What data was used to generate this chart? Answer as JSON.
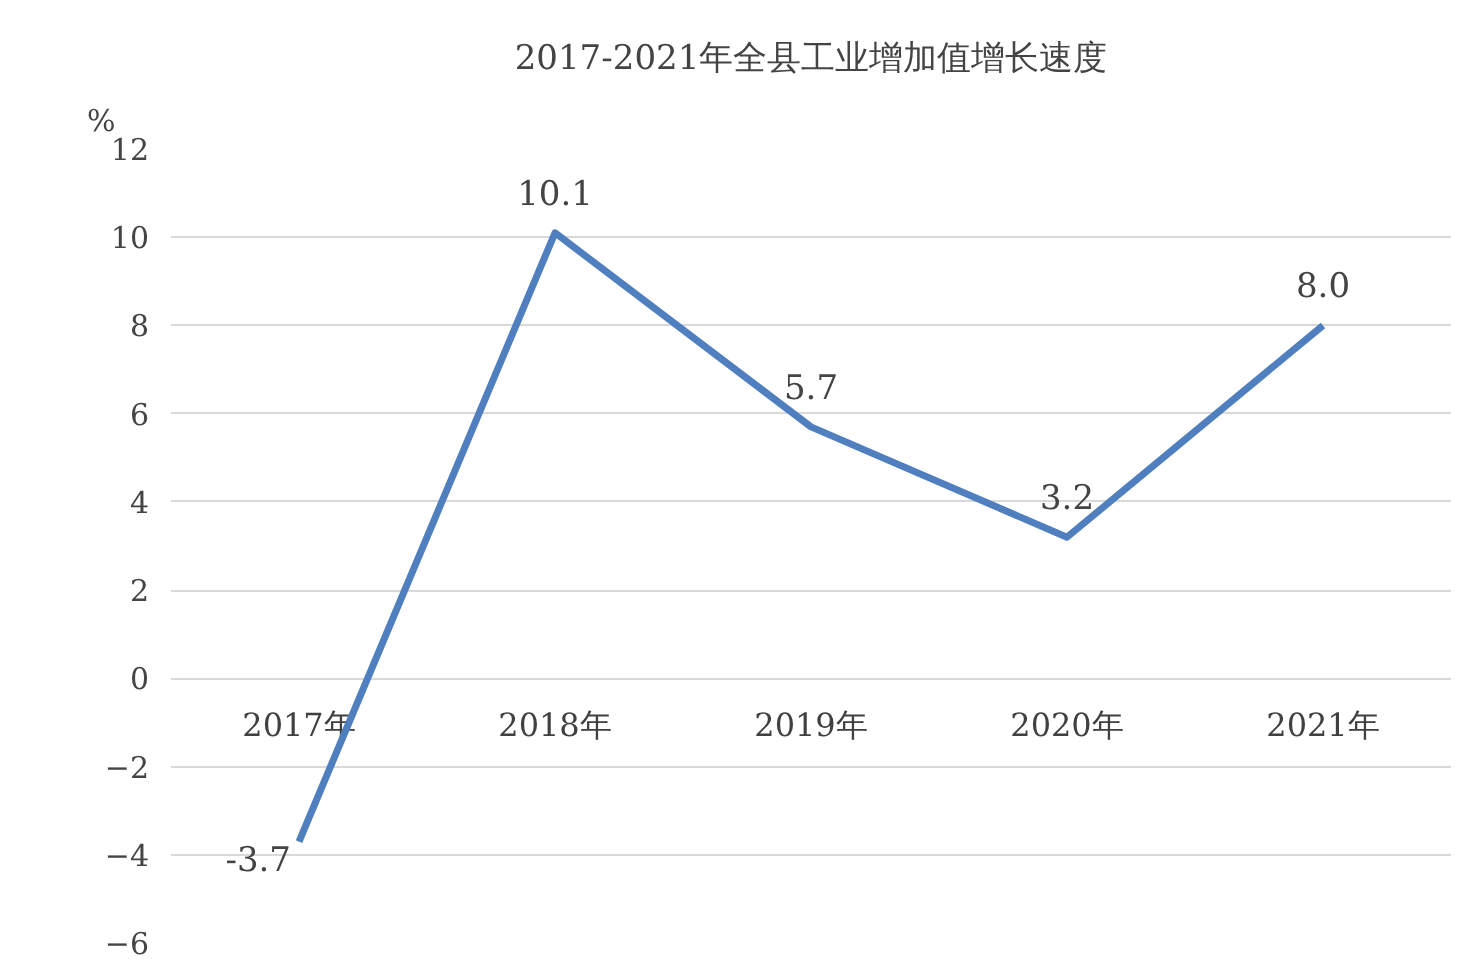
{
  "chart_data": {
    "type": "line",
    "title": "2017-2021年全县工业增加值增长速度",
    "ylabel": "%",
    "categories": [
      "2017年",
      "2018年",
      "2019年",
      "2020年",
      "2021年"
    ],
    "series": [
      {
        "color": "#4f7fbf",
        "values": [
          -3.7,
          10.1,
          5.7,
          3.2,
          8.0
        ],
        "value_labels": [
          "-3.7",
          "10.1",
          "5.7",
          "3.2",
          "8.0"
        ]
      }
    ],
    "ylim": [
      -6,
      12
    ],
    "yticks": [
      -6,
      -4,
      -2,
      0,
      2,
      4,
      6,
      8,
      10,
      12
    ],
    "grid": "y",
    "marker": "none",
    "line_style": "solid"
  }
}
